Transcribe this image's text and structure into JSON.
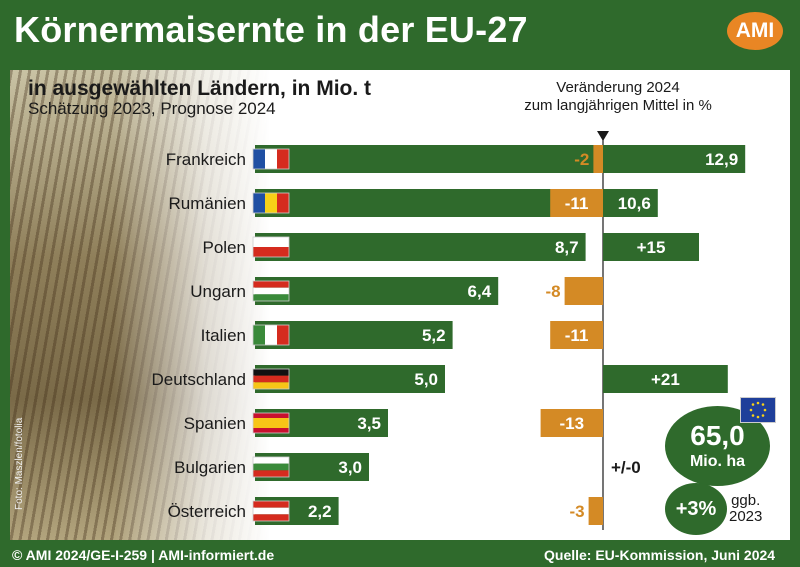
{
  "title": "Körnermaisernte in der EU-27",
  "logo_text": "AMI",
  "subtitle": "in ausgewählten Ländern, in Mio. t",
  "subtitle2": "Schätzung 2023, Prognose 2024",
  "change_header_line1": "Veränderung 2024",
  "change_header_line2": "zum langjährigen Mittel in %",
  "photo_credit": "Foto: Maszlen/fotolia",
  "colors": {
    "bar_green": "#2f6a2c",
    "change_orange": "#d48a25",
    "frame_green": "#2f6a2c"
  },
  "chart_data": {
    "type": "bar",
    "title": "Körnermaisernte in der EU-27",
    "subtitle": "in ausgewählten Ländern, in Mio. t",
    "categories": [
      "Frankreich",
      "Rumänien",
      "Polen",
      "Ungarn",
      "Italien",
      "Deutschland",
      "Spanien",
      "Bulgarien",
      "Österreich"
    ],
    "series": [
      {
        "name": "Schätzung 2023, Prognose 2024",
        "unit": "Mio. t",
        "values": [
          12.9,
          10.6,
          8.7,
          6.4,
          5.2,
          5.0,
          3.5,
          3.0,
          2.2
        ],
        "labels": [
          "12,9",
          "10,6",
          "8,7",
          "6,4",
          "5,2",
          "5,0",
          "3,5",
          "3,0",
          "2,2"
        ]
      },
      {
        "name": "Veränderung 2024 zum langjährigen Mittel in %",
        "unit": "%",
        "values": [
          -2,
          -11,
          15,
          -8,
          -11,
          21,
          -13,
          0,
          -3
        ],
        "labels": [
          "-2",
          "-11",
          "+15",
          "-8",
          "-11",
          "+21",
          "-13",
          "+/-0",
          "-3"
        ]
      }
    ],
    "eu_total": {
      "value": "65,0",
      "unit": "Mio. ha",
      "change": "+3%",
      "compare_line1": "ggb.",
      "compare_line2": "2023"
    }
  },
  "flags": [
    {
      "country": "Frankreich",
      "type": "v",
      "colors": [
        "#1f4fa3",
        "#ffffff",
        "#d52b1e"
      ]
    },
    {
      "country": "Rumänien",
      "type": "v",
      "colors": [
        "#1f4fa3",
        "#f7d117",
        "#d52b1e"
      ]
    },
    {
      "country": "Polen",
      "type": "h",
      "colors": [
        "#ffffff",
        "#d52b1e"
      ]
    },
    {
      "country": "Ungarn",
      "type": "h",
      "colors": [
        "#d52b1e",
        "#ffffff",
        "#3a8a3a"
      ]
    },
    {
      "country": "Italien",
      "type": "v",
      "colors": [
        "#3a8a3a",
        "#ffffff",
        "#d52b1e"
      ]
    },
    {
      "country": "Deutschland",
      "type": "h",
      "colors": [
        "#111111",
        "#d52b1e",
        "#f7c517"
      ]
    },
    {
      "country": "Spanien",
      "type": "h3",
      "colors": [
        "#c8102e",
        "#f7c517",
        "#c8102e"
      ]
    },
    {
      "country": "Bulgarien",
      "type": "h",
      "colors": [
        "#ffffff",
        "#3a8a3a",
        "#d52b1e"
      ]
    },
    {
      "country": "Österreich",
      "type": "h",
      "colors": [
        "#d52b1e",
        "#ffffff",
        "#d52b1e"
      ]
    }
  ],
  "footer": {
    "left": "© AMI 2024/GE-I-259 | AMI-informiert.de",
    "right": "Quelle: EU-Kommission, Juni 2024"
  }
}
